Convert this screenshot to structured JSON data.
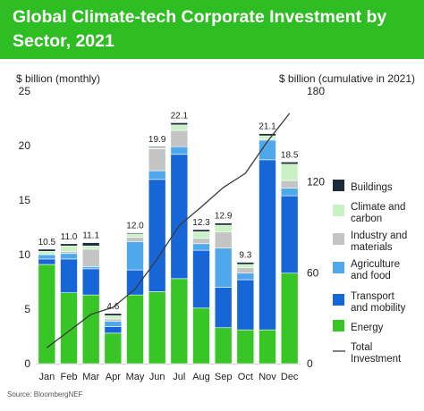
{
  "header": {
    "title": "Global Climate-tech Corporate Investment by Sector, 2021"
  },
  "source": "Source: BloombergNEF",
  "colors": {
    "header": "#2ebd23",
    "Buildings": "#1c2b39",
    "Climate and carbon": "#c9f2c4",
    "Industry and materials": "#c4c4c4",
    "Agriculture and food": "#4fa8ea",
    "Transport and mobility": "#1666d7",
    "Energy": "#38c526",
    "Total Investment": "#3a3a3a"
  },
  "chart_data": {
    "type": "bar",
    "stacked": true,
    "categories": [
      "Jan",
      "Feb",
      "Mar",
      "Apr",
      "May",
      "Jun",
      "Jul",
      "Aug",
      "Sep",
      "Oct",
      "Nov",
      "Dec"
    ],
    "ylabel": "$ billion (monthly)",
    "y2label": "$ billion (cumulative in 2021)",
    "ylim": [
      0,
      25
    ],
    "yticks": [
      "0",
      "5",
      "10",
      "15",
      "20",
      "25"
    ],
    "y2lim": [
      0,
      180
    ],
    "y2ticks": [
      "0",
      "60",
      "120",
      "180"
    ],
    "grid": false,
    "legend_position": "right",
    "totals": [
      "10.5",
      "11.0",
      "11.1",
      "4.6",
      "12.0",
      "19.9",
      "22.1",
      "12.3",
      "12.9",
      "9.3",
      "21.1",
      "18.5"
    ],
    "series": [
      {
        "name": "Energy",
        "values": [
          9.1,
          6.5,
          6.3,
          2.8,
          6.3,
          6.6,
          7.8,
          5.1,
          3.3,
          3.1,
          3.1,
          8.3
        ]
      },
      {
        "name": "Transport and mobility",
        "values": [
          0.5,
          3.1,
          2.4,
          0.6,
          2.3,
          10.3,
          11.4,
          5.3,
          3.7,
          4.6,
          15.6,
          7.1
        ]
      },
      {
        "name": "Agriculture and food",
        "values": [
          0.4,
          0.5,
          0.2,
          0.5,
          2.6,
          0.8,
          0.7,
          0.6,
          3.6,
          0.6,
          1.8,
          0.7
        ]
      },
      {
        "name": "Industry and materials",
        "values": [
          0.0,
          0.2,
          1.6,
          0.2,
          0.4,
          2.0,
          1.5,
          0.5,
          1.5,
          0.5,
          0.1,
          0.7
        ]
      },
      {
        "name": "Climate and carbon",
        "values": [
          0.3,
          0.5,
          0.3,
          0.3,
          0.3,
          0.1,
          0.5,
          0.6,
          0.6,
          0.3,
          0.3,
          1.5
        ]
      },
      {
        "name": "Buildings",
        "values": [
          0.2,
          0.2,
          0.3,
          0.2,
          0.1,
          0.1,
          0.2,
          0.2,
          0.2,
          0.2,
          0.2,
          0.2
        ]
      }
    ],
    "line": {
      "name": "Total Investment",
      "axis": "secondary",
      "values": [
        10.5,
        21.5,
        32.6,
        37.2,
        49.2,
        69.1,
        91.2,
        103.5,
        116.4,
        125.7,
        146.8,
        165.3
      ]
    },
    "legend": [
      "Buildings",
      "Climate and carbon",
      "Industry and materials",
      "Agriculture and food",
      "Transport and mobility",
      "Energy",
      "Total Investment"
    ]
  }
}
